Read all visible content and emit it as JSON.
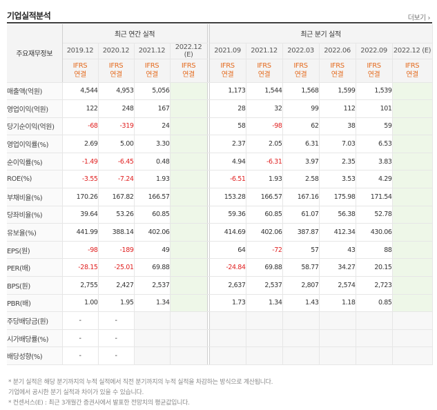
{
  "header": {
    "title": "기업실적분석",
    "more": "더보기 ›"
  },
  "table": {
    "label_header": "주요재무정보",
    "annual_group": "최근 연간 실적",
    "quarter_group": "최근 분기 실적",
    "annual_periods": [
      "2019.12",
      "2020.12",
      "2021.12",
      "2022.12\n(E)"
    ],
    "quarter_periods": [
      "2021.09",
      "2021.12",
      "2022.03",
      "2022.06",
      "2022.09",
      "2022.12 (E)"
    ],
    "ifrs_label": "IFRS\n연결",
    "rows": [
      {
        "label": "매출액(억원)",
        "annual": [
          "4,544",
          "4,953",
          "5,056",
          ""
        ],
        "quarter": [
          "1,173",
          "1,544",
          "1,568",
          "1,599",
          "1,539",
          ""
        ]
      },
      {
        "label": "영업이익(억원)",
        "annual": [
          "122",
          "248",
          "167",
          ""
        ],
        "quarter": [
          "28",
          "32",
          "99",
          "112",
          "101",
          ""
        ]
      },
      {
        "label": "당기순이익(억원)",
        "annual": [
          "-68",
          "-319",
          "24",
          ""
        ],
        "quarter": [
          "58",
          "-98",
          "62",
          "38",
          "59",
          ""
        ]
      },
      {
        "label": "영업이익률(%)",
        "annual": [
          "2.69",
          "5.00",
          "3.30",
          ""
        ],
        "quarter": [
          "2.37",
          "2.05",
          "6.31",
          "7.03",
          "6.53",
          ""
        ]
      },
      {
        "label": "순이익률(%)",
        "annual": [
          "-1.49",
          "-6.45",
          "0.48",
          ""
        ],
        "quarter": [
          "4.94",
          "-6.31",
          "3.97",
          "2.35",
          "3.83",
          ""
        ]
      },
      {
        "label": "ROE(%)",
        "annual": [
          "-3.55",
          "-7.24",
          "1.93",
          ""
        ],
        "quarter": [
          "-6.51",
          "1.93",
          "2.58",
          "3.53",
          "4.29",
          ""
        ]
      },
      {
        "label": "부채비율(%)",
        "annual": [
          "170.26",
          "167.82",
          "166.57",
          ""
        ],
        "quarter": [
          "153.28",
          "166.57",
          "167.16",
          "175.98",
          "171.54",
          ""
        ]
      },
      {
        "label": "당좌비율(%)",
        "annual": [
          "39.64",
          "53.26",
          "60.85",
          ""
        ],
        "quarter": [
          "59.36",
          "60.85",
          "61.07",
          "56.38",
          "52.78",
          ""
        ]
      },
      {
        "label": "유보율(%)",
        "annual": [
          "441.99",
          "388.14",
          "402.06",
          ""
        ],
        "quarter": [
          "414.69",
          "402.06",
          "387.87",
          "412.34",
          "430.06",
          ""
        ]
      },
      {
        "label": "EPS(원)",
        "annual": [
          "-98",
          "-189",
          "49",
          ""
        ],
        "quarter": [
          "64",
          "-72",
          "57",
          "43",
          "88",
          ""
        ]
      },
      {
        "label": "PER(배)",
        "annual": [
          "-28.15",
          "-25.01",
          "69.88",
          ""
        ],
        "quarter": [
          "-24.84",
          "69.88",
          "58.77",
          "34.27",
          "20.15",
          ""
        ]
      },
      {
        "label": "BPS(원)",
        "annual": [
          "2,755",
          "2,427",
          "2,537",
          ""
        ],
        "quarter": [
          "2,637",
          "2,537",
          "2,807",
          "2,574",
          "2,723",
          ""
        ]
      },
      {
        "label": "PBR(배)",
        "annual": [
          "1.00",
          "1.95",
          "1.34",
          ""
        ],
        "quarter": [
          "1.73",
          "1.34",
          "1.43",
          "1.18",
          "0.85",
          ""
        ]
      },
      {
        "label": "주당배당금(원)",
        "annual": [
          "-",
          "-",
          "",
          ""
        ],
        "quarter": [
          "",
          "",
          "",
          "",
          "",
          ""
        ]
      },
      {
        "label": "시가배당률(%)",
        "annual": [
          "-",
          "-",
          "",
          ""
        ],
        "quarter": [
          "",
          "",
          "",
          "",
          "",
          ""
        ]
      },
      {
        "label": "배당성향(%)",
        "annual": [
          "-",
          "-",
          "",
          ""
        ],
        "quarter": [
          "",
          "",
          "",
          "",
          "",
          ""
        ]
      }
    ]
  },
  "notes": [
    "* 분기 실적은 해당 분기까지의 누적 실적에서 직전 분기까지의 누적 실적을 차감하는 방식으로 계산됩니다.",
    "  기업에서 공시한 분기 실적과 차이가 있을 수 있습니다.",
    "* 컨센서스(E) : 최근 3개월간 증권사에서 발표한 전망치의 평균값입니다."
  ],
  "colors": {
    "negative": "#e02020",
    "ifrs": "#e46b1f",
    "estimate_bg": "#eef7e8"
  }
}
